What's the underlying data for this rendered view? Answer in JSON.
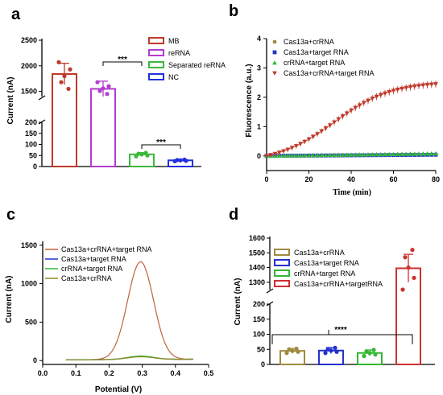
{
  "panels": {
    "a": "a",
    "b": "b",
    "c": "c",
    "d": "d"
  },
  "chart_data": [
    {
      "panel": "a",
      "type": "bar",
      "title": "",
      "xlabel": "",
      "ylabel": "Current (nA)",
      "axis_break": true,
      "yticks_lower": [
        "0",
        "50",
        "100",
        "150",
        "200"
      ],
      "yticks_upper": [
        "1500",
        "2000",
        "2500"
      ],
      "categories": [
        "MB",
        "reRNA",
        "Separated reRNA",
        "NC"
      ],
      "colors": [
        "#c0392b",
        "#b23ccf",
        "#3cb83c",
        "#2230e0"
      ],
      "values": [
        1840,
        1550,
        55,
        28
      ],
      "errors": [
        210,
        150,
        8,
        5
      ],
      "points": [
        [
          2070,
          1930,
          1800,
          1680,
          1550
        ],
        [
          1680,
          1600,
          1560,
          1510,
          1450
        ],
        [
          46,
          50,
          55,
          58,
          62
        ],
        [
          24,
          26,
          28,
          29,
          31
        ]
      ],
      "legend": [
        "MB",
        "reRNA",
        "Separated reRNA",
        "NC"
      ],
      "annotations": [
        "***",
        "***"
      ]
    },
    {
      "panel": "b",
      "type": "line",
      "title": "",
      "xlabel": "Time (min)",
      "ylabel": "Fluorescence (a.u.)",
      "xlim": [
        0,
        80
      ],
      "ylim": [
        -0.5,
        4
      ],
      "xticks": [
        "0",
        "20",
        "40",
        "60",
        "80"
      ],
      "yticks": [
        "0",
        "1",
        "2",
        "3",
        "4"
      ],
      "series": [
        {
          "name": "Cas13a+crRNA",
          "color": "#a08a40",
          "marker": "circle",
          "plateau": 0.05,
          "sigmoid": false
        },
        {
          "name": "Cas13a+target RNA",
          "color": "#2233cc",
          "marker": "square",
          "plateau": 0.04,
          "sigmoid": false
        },
        {
          "name": "crRNA+target RNA",
          "color": "#33b833",
          "marker": "triangle-up",
          "plateau": 0.08,
          "sigmoid": false
        },
        {
          "name": "Cas13a+crRNA+target RNA",
          "color": "#c0392b",
          "marker": "triangle-down",
          "plateau": 2.75,
          "midpoint": 32,
          "steepness": 0.075,
          "sigmoid": true
        }
      ]
    },
    {
      "panel": "c",
      "type": "line",
      "title": "",
      "xlabel": "Potential (V)",
      "ylabel": "Current (nA)",
      "xlim": [
        0,
        0.5
      ],
      "ylim": [
        -50,
        1550
      ],
      "xticks": [
        "0.0",
        "0.1",
        "0.2",
        "0.3",
        "0.4",
        "0.5"
      ],
      "yticks": [
        "0",
        "500",
        "1000",
        "1500"
      ],
      "series": [
        {
          "name": "Cas13a+crRNA+target RNA",
          "color": "#c0623a",
          "peak": 1270
        },
        {
          "name": "Cas13a+target RNA",
          "color": "#2233cc",
          "peak": 40
        },
        {
          "name": "crRNA+target RNA",
          "color": "#33b833",
          "peak": 45
        },
        {
          "name": "Cas13a+crRNA",
          "color": "#8a8a20",
          "peak": 35
        }
      ]
    },
    {
      "panel": "d",
      "type": "bar",
      "title": "",
      "xlabel": "",
      "ylabel": "Current (nA)",
      "axis_break": true,
      "yticks_lower": [
        "0",
        "50",
        "100",
        "150",
        "200"
      ],
      "yticks_upper": [
        "1300",
        "1400",
        "1500",
        "1600"
      ],
      "categories": [
        "Cas13a+crRNA",
        "Cas13a+target RNA",
        "crRNA+target RNA",
        "Cas13a+crRNA+targetRNA"
      ],
      "colors": [
        "#a08a40",
        "#2233cc",
        "#33b833",
        "#d03030"
      ],
      "values": [
        45,
        46,
        38,
        1395
      ],
      "errors": [
        8,
        10,
        10,
        95
      ],
      "points": [
        [
          38,
          42,
          45,
          50,
          52
        ],
        [
          38,
          42,
          46,
          50,
          55
        ],
        [
          28,
          33,
          38,
          43,
          48
        ],
        [
          1250,
          1330,
          1400,
          1470,
          1520
        ]
      ],
      "legend": [
        "Cas13a+crRNA",
        "Cas13a+target RNA",
        "crRNA+target RNA",
        "Cas13a+crRNA+targetRNA"
      ],
      "annotations": [
        "****"
      ]
    }
  ]
}
